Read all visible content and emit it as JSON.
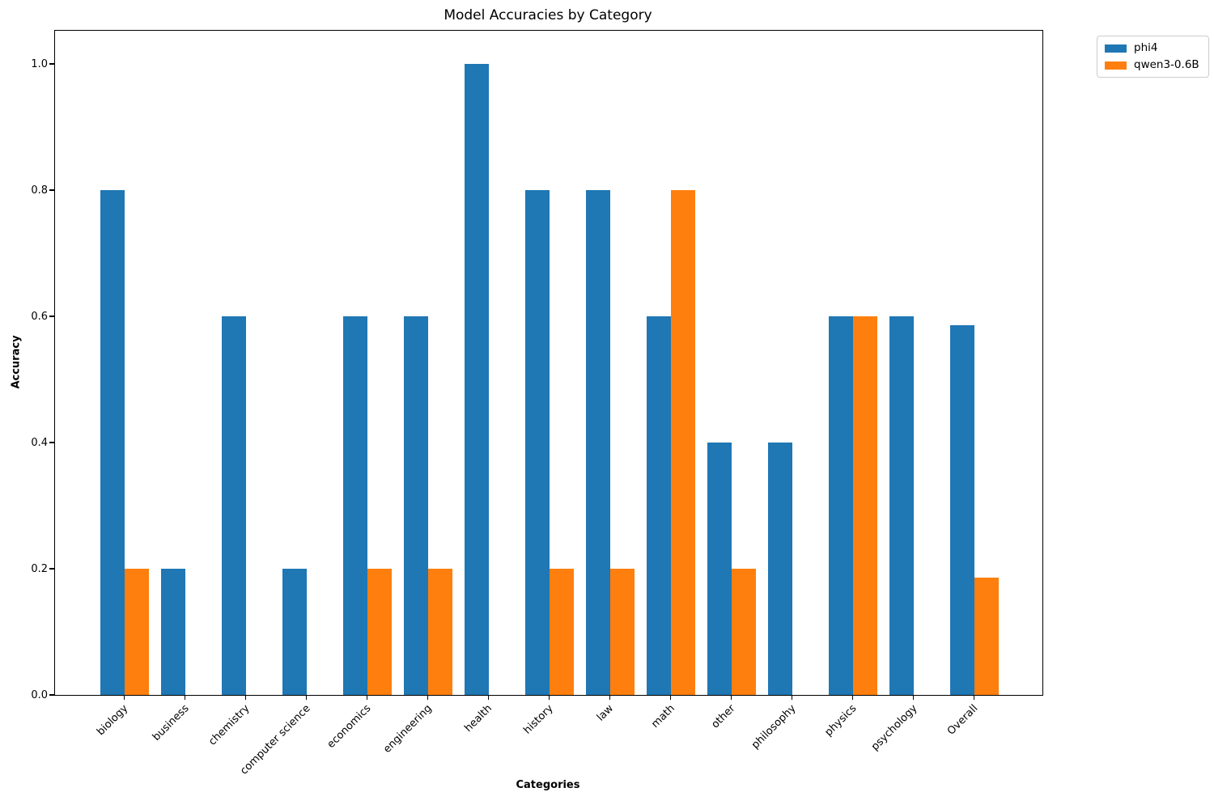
{
  "title": "Model Accuracies by Category",
  "axes": {
    "x_label": "Categories",
    "y_label": "Accuracy",
    "y_tick_labels": [
      "0.0",
      "0.2",
      "0.4",
      "0.6",
      "0.8",
      "1.0"
    ]
  },
  "legend": [
    {
      "label": "phi4",
      "color": "#1f77b4"
    },
    {
      "label": "qwen3-0.6B",
      "color": "#ff7f0e"
    }
  ],
  "chart_data": {
    "type": "bar",
    "title": "Model Accuracies by Category",
    "xlabel": "Categories",
    "ylabel": "Accuracy",
    "ylim": [
      0,
      1.05
    ],
    "grid": false,
    "legend_position": "upper-right-outside",
    "categories": [
      "biology",
      "business",
      "chemistry",
      "computer science",
      "economics",
      "engineering",
      "health",
      "history",
      "law",
      "math",
      "other",
      "philosophy",
      "physics",
      "psychology",
      "Overall"
    ],
    "series": [
      {
        "name": "phi4",
        "color": "#1f77b4",
        "values": [
          0.8,
          0.2,
          0.6,
          0.2,
          0.6,
          0.6,
          1.0,
          0.8,
          0.8,
          0.6,
          0.4,
          0.4,
          0.6,
          0.6,
          0.586
        ]
      },
      {
        "name": "qwen3-0.6B",
        "color": "#ff7f0e",
        "values": [
          0.2,
          0.0,
          0.0,
          0.0,
          0.2,
          0.2,
          0.0,
          0.2,
          0.2,
          0.8,
          0.2,
          0.0,
          0.6,
          0.0,
          0.186
        ]
      }
    ]
  }
}
